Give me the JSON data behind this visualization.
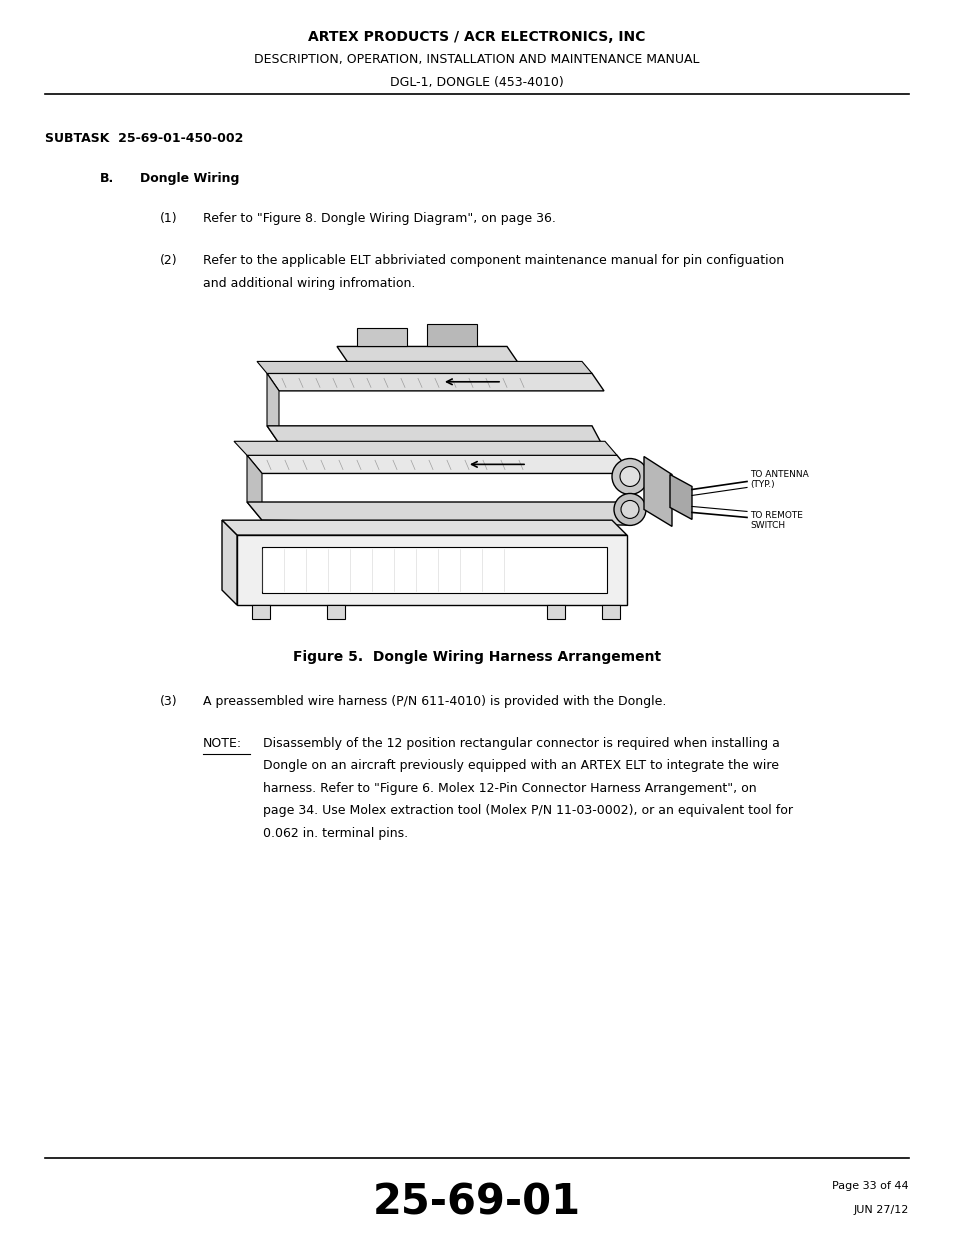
{
  "background_color": "#ffffff",
  "page_width": 9.54,
  "page_height": 12.35,
  "header": {
    "line1": "ARTEX PRODUCTS / ACR ELECTRONICS, INC",
    "line2": "DESCRIPTION, OPERATION, INSTALLATION AND MAINTENANCE MANUAL",
    "line3": "DGL-1, DONGLE (453-4010)"
  },
  "subtask_label": "SUBTASK  25-69-01-450-002",
  "section_b_label": "B.",
  "section_b_title": "Dongle Wiring",
  "item1_num": "(1)",
  "item1_text": "Refer to \"Figure 8. Dongle Wiring Diagram\", on page 36.",
  "item2_num": "(2)",
  "item2_text_line1": "Refer to the applicable ELT abbriviated component maintenance manual for pin configuation",
  "item2_text_line2": "and additional wiring infromation.",
  "figure_caption": "Figure 5.  Dongle Wiring Harness Arrangement",
  "item3_num": "(3)",
  "item3_text": "A preassembled wire harness (P/N 611-4010) is provided with the Dongle.",
  "note_label": "NOTE:",
  "note_lines": [
    "Disassembly of the 12 position rectangular connector is required when installing a",
    "Dongle on an aircraft previously equipped with an ARTEX ELT to integrate the wire",
    "harness. Refer to \"Figure 6. Molex 12-Pin Connector Harness Arrangement\", on",
    "page 34. Use Molex extraction tool (Molex P/N 11-03-0002), or an equivalent tool for",
    "0.062 in. terminal pins."
  ],
  "footer_page_num": "25-69-01",
  "footer_page_ref": "Page 33 of 44",
  "footer_date": "JUN 27/12",
  "text_color": "#000000",
  "line_color": "#000000"
}
